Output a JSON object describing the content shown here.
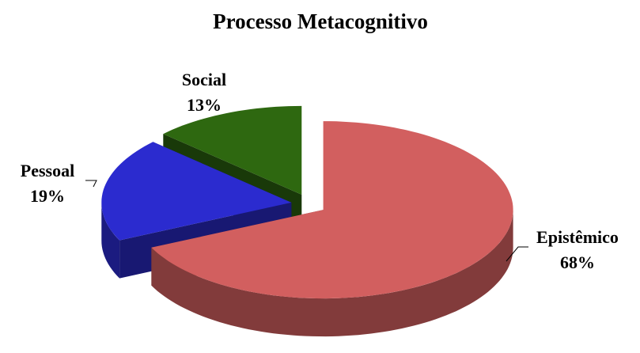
{
  "chart_data": {
    "type": "pie",
    "title": "Processo Metacognitivo",
    "categories": [
      "Epistêmico",
      "Pessoal",
      "Social"
    ],
    "values": [
      68,
      19,
      13
    ],
    "value_labels": [
      "68%",
      "19%",
      "13%"
    ],
    "colors": [
      "#d25f5f",
      "#2b2bcf",
      "#2e6810"
    ]
  }
}
